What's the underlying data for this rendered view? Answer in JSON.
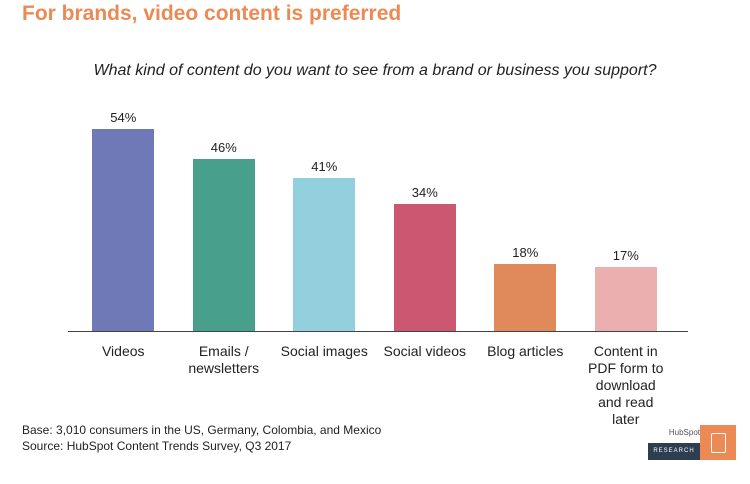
{
  "chart_data": {
    "type": "bar",
    "title": "For brands, video content is preferred",
    "subtitle": "What kind of content do you want to see from a brand or business you support?",
    "categories": [
      "Videos",
      "Emails / newsletters",
      "Social images",
      "Social videos",
      "Blog articles",
      "Content in PDF form to download and read later"
    ],
    "values": [
      54,
      46,
      41,
      34,
      18,
      17
    ],
    "value_labels": [
      "54%",
      "46%",
      "41%",
      "34%",
      "18%",
      "17%"
    ],
    "colors": [
      "#6f79b8",
      "#48a08c",
      "#92d0de",
      "#cc5770",
      "#e08a5c",
      "#ecafb0"
    ],
    "notes": [
      "Base: 3,010 consumers in the US, Germany, Colombia, and Mexico",
      "Source: HubSpot Content Trends Survey, Q3 2017"
    ]
  },
  "logo": {
    "brand": "HubSpot",
    "label": "RESEARCH"
  }
}
